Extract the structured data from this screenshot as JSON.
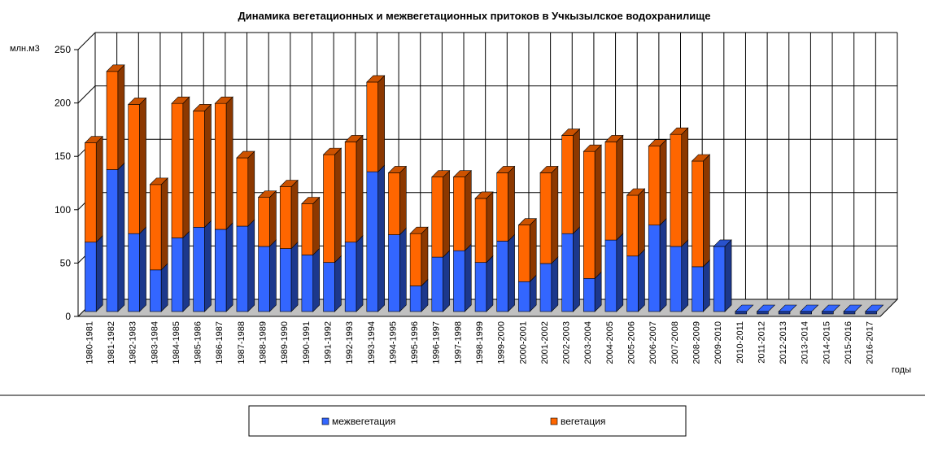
{
  "chart_data": {
    "type": "bar",
    "stacked": true,
    "three_d": true,
    "title": "Динамика вегетационных и межвегетационных притоков  в Учкызылское водохранилище",
    "ylabel": "млн.м3",
    "xlabel": "годы",
    "ylim": [
      0,
      250
    ],
    "yticks": [
      "0",
      "50",
      "100",
      "150",
      "200",
      "250"
    ],
    "grid": true,
    "legend_position": "bottom",
    "categories": [
      "1980-1981",
      "1981-1982",
      "1982-1983",
      "1983-1984",
      "1984-1985",
      "1985-1986",
      "1986-1987",
      "1987-1988",
      "1988-1989",
      "1989-1990",
      "1990-1991",
      "1991-1992",
      "1992-1993",
      "1993-1994",
      "1994-1995",
      "1995-1996",
      "1996-1997",
      "1997-1998",
      "1998-1999",
      "1999-2000",
      "2000-2001",
      "2001-2002",
      "2002-2003",
      "2003-2004",
      "2004-2005",
      "2005-2006",
      "2006-2007",
      "2007-2008",
      "2008-2009",
      "2009-2010",
      "2010-2011",
      "2011-2012",
      "2012-2013",
      "2013-2014",
      "2014-2015",
      "2015-2016",
      "2016-2017"
    ],
    "series": [
      {
        "name": "межвегетация",
        "color": "#3366ff",
        "values": [
          65,
          133,
          73,
          39,
          69,
          79,
          77,
          80,
          61,
          59,
          53,
          46,
          65,
          131,
          72,
          24,
          51,
          57,
          46,
          66,
          28,
          45,
          73,
          31,
          67,
          52,
          81,
          61,
          42,
          61,
          0,
          0,
          0,
          0,
          0,
          0,
          0
        ]
      },
      {
        "name": "вегетация",
        "color": "#ff6600",
        "values": [
          93,
          92,
          121,
          80,
          126,
          109,
          118,
          64,
          46,
          58,
          48,
          101,
          94,
          84,
          58,
          49,
          75,
          69,
          60,
          64,
          53,
          85,
          92,
          119,
          92,
          57,
          74,
          105,
          99,
          0,
          0,
          0,
          0,
          0,
          0,
          0,
          0
        ]
      }
    ]
  }
}
